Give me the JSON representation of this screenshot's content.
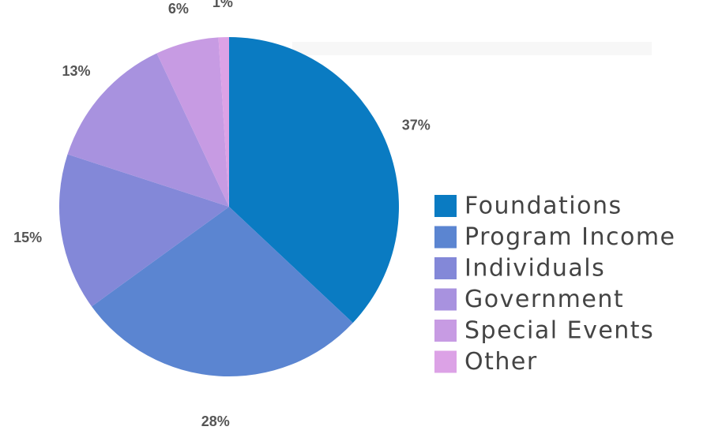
{
  "chart_data": {
    "type": "pie",
    "categories": [
      "Foundations",
      "Program Income",
      "Individuals",
      "Government",
      "Special Events",
      "Other"
    ],
    "values": [
      37,
      28,
      15,
      13,
      6,
      1
    ],
    "value_labels": [
      "37%",
      "28%",
      "15%",
      "13%",
      "6%",
      "1%"
    ],
    "colors": [
      "#0a7bc2",
      "#5b85d1",
      "#8388d8",
      "#a892df",
      "#c79be3",
      "#dca2e6"
    ],
    "legend": "right"
  }
}
